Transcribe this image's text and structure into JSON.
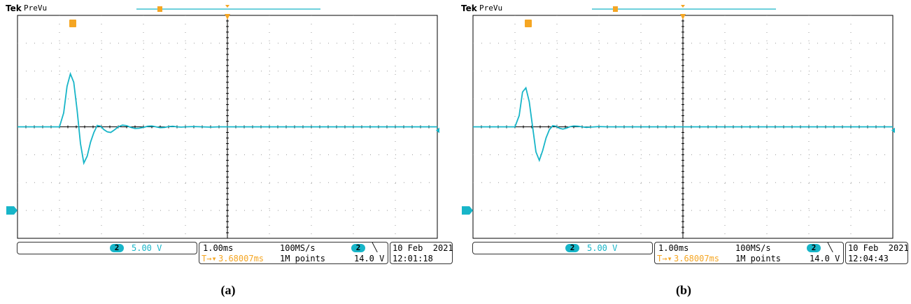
{
  "chart_data": [
    {
      "type": "line",
      "panel_label": "(a)",
      "brand": "Tek",
      "mode": "PreVu",
      "channel": "2",
      "vertical_scale": "5.00 V",
      "timebase": "1.00ms",
      "sample_rate": "100MS/s",
      "trigger_channel": "2",
      "trigger_slope_icon": "falling-edge-icon",
      "trigger_level": "14.0 V",
      "trigger_position": "3.68007ms",
      "record_length": "1M points",
      "date": "10 Feb  2021",
      "time": "12:01:18",
      "xlim": [
        0,
        10
      ],
      "ylim": [
        -4,
        4
      ],
      "grid": true,
      "series": [
        {
          "color": "#17b5c8",
          "x": [
            0,
            1.0,
            1.1,
            1.18,
            1.26,
            1.34,
            1.42,
            1.5,
            1.58,
            1.66,
            1.74,
            1.82,
            1.9,
            1.98,
            2.06,
            2.14,
            2.22,
            2.3,
            2.4,
            2.5,
            2.6,
            2.7,
            2.8,
            2.9,
            3.0,
            3.1,
            3.2,
            3.3,
            3.4,
            3.5,
            3.6,
            3.7,
            3.8,
            3.9,
            4.0,
            4.2,
            4.4,
            4.6,
            4.8,
            5.0,
            6.0,
            7.0,
            8.0,
            9.0,
            10.0
          ],
          "y": [
            0.0,
            0.0,
            0.5,
            1.45,
            1.9,
            1.6,
            0.6,
            -0.6,
            -1.3,
            -1.05,
            -0.55,
            -0.2,
            0.05,
            0.02,
            -0.1,
            -0.18,
            -0.2,
            -0.12,
            0.0,
            0.06,
            0.04,
            -0.02,
            -0.06,
            -0.05,
            -0.02,
            0.02,
            0.03,
            0.0,
            -0.03,
            -0.02,
            0.01,
            0.02,
            0.0,
            -0.01,
            0.0,
            0.01,
            0.0,
            -0.01,
            0.0,
            0.0,
            0.0,
            0.0,
            0.0,
            0.0,
            0.0
          ]
        }
      ]
    },
    {
      "type": "line",
      "panel_label": "(b)",
      "brand": "Tek",
      "mode": "PreVu",
      "channel": "2",
      "vertical_scale": "5.00 V",
      "timebase": "1.00ms",
      "sample_rate": "100MS/s",
      "trigger_channel": "2",
      "trigger_slope_icon": "falling-edge-icon",
      "trigger_level": "14.0 V",
      "trigger_position": "3.68007ms",
      "record_length": "1M points",
      "date": "10 Feb  2021",
      "time": "12:04:43",
      "xlim": [
        0,
        10
      ],
      "ylim": [
        -4,
        4
      ],
      "grid": true,
      "series": [
        {
          "color": "#17b5c8",
          "x": [
            0,
            1.0,
            1.1,
            1.18,
            1.26,
            1.34,
            1.42,
            1.5,
            1.58,
            1.66,
            1.74,
            1.82,
            1.9,
            1.98,
            2.06,
            2.14,
            2.22,
            2.3,
            2.4,
            2.5,
            2.6,
            2.7,
            2.8,
            2.9,
            3.0,
            3.2,
            3.4,
            3.6,
            3.8,
            4.0,
            4.5,
            5.0,
            6.0,
            7.0,
            8.0,
            9.0,
            10.0
          ],
          "y": [
            0.0,
            0.0,
            0.4,
            1.25,
            1.4,
            0.9,
            0.0,
            -0.9,
            -1.2,
            -0.85,
            -0.4,
            -0.1,
            0.04,
            0.02,
            -0.05,
            -0.08,
            -0.05,
            0.0,
            0.03,
            0.02,
            0.0,
            -0.02,
            -0.01,
            0.0,
            0.01,
            0.0,
            0.0,
            0.0,
            0.0,
            0.0,
            0.0,
            0.0,
            0.0,
            0.0,
            0.0,
            0.0,
            0.0
          ]
        }
      ]
    }
  ]
}
